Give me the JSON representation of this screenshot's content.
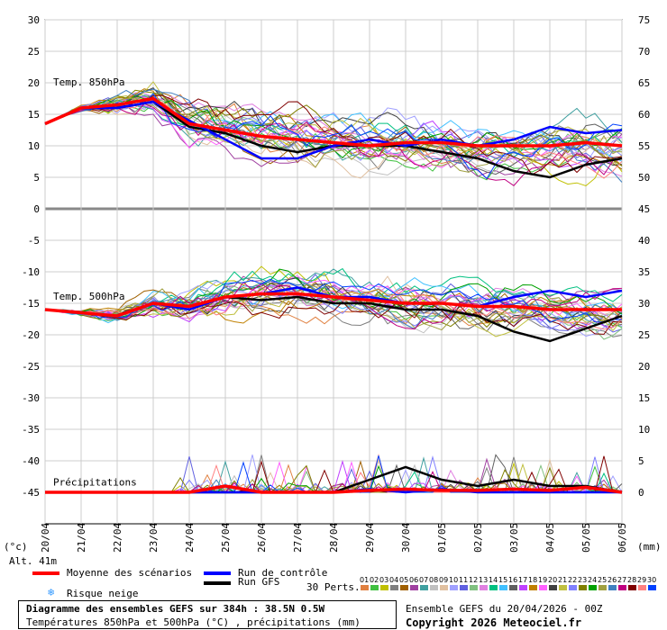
{
  "chart_data": {
    "type": "line",
    "left_axis_ticks": [
      "30",
      "25",
      "20",
      "15",
      "10",
      "5",
      "0",
      "-5",
      "-10",
      "-15",
      "-20",
      "-25",
      "-30",
      "-35",
      "-40",
      "-45"
    ],
    "right_axis_ticks": [
      "75",
      "70",
      "65",
      "60",
      "55",
      "50",
      "45",
      "40",
      "35",
      "30",
      "25",
      "20",
      "15",
      "10",
      "5",
      "0"
    ],
    "left_unit": "(°c)",
    "right_unit": "(mm)",
    "altitude": "Alt. 41m",
    "x_dates": [
      "20/04",
      "21/04",
      "22/04",
      "23/04",
      "24/04",
      "25/04",
      "26/04",
      "27/04",
      "28/04",
      "29/04",
      "30/04",
      "01/05",
      "02/05",
      "03/05",
      "04/05",
      "05/05",
      "06/05"
    ],
    "panel_labels": {
      "t850": "Temp. 850hPa",
      "t500": "Temp. 500hPa",
      "precip": "Précipitations"
    },
    "series": [
      {
        "name": "Moyenne des scénarios",
        "color": "#ff0000",
        "t850": [
          13.5,
          16,
          16.5,
          17.5,
          13.5,
          12.5,
          11.5,
          11,
          10.5,
          10,
          10.5,
          10.5,
          10,
          10,
          10,
          10.5,
          10
        ],
        "t500": [
          -16,
          -16.5,
          -17,
          -15,
          -15.5,
          -14,
          -13.5,
          -13.5,
          -14,
          -14.5,
          -15,
          -15,
          -15.5,
          -15.5,
          -16,
          -16,
          -16
        ],
        "precip": [
          0,
          0,
          0,
          0,
          0,
          1,
          0,
          0,
          0,
          0.3,
          0.5,
          0.3,
          0.3,
          0.5,
          0.3,
          0.8,
          0
        ]
      },
      {
        "name": "Run de contrôle",
        "color": "#0000ff",
        "t850": [
          13.5,
          16,
          16,
          17,
          14,
          11,
          8,
          8,
          10,
          11,
          10,
          11,
          10,
          11,
          13,
          12,
          12.5
        ],
        "t500": [
          -16,
          -16.5,
          -17,
          -15,
          -16,
          -14,
          -13.5,
          -12.5,
          -14,
          -14,
          -15,
          -15,
          -15.5,
          -14,
          -13,
          -14,
          -13
        ],
        "precip": [
          0,
          0,
          0,
          0,
          0,
          0,
          0,
          0,
          0,
          0.5,
          0,
          0.5,
          0,
          0,
          0,
          0,
          0
        ]
      },
      {
        "name": "Run GFS",
        "color": "#000000",
        "t850": [
          13.5,
          16,
          16,
          17,
          13,
          12,
          10,
          9,
          10,
          10,
          10,
          9,
          8,
          6,
          5,
          7,
          8
        ],
        "t500": [
          -16,
          -16.5,
          -17,
          -15,
          -15.5,
          -14,
          -14.5,
          -14,
          -15,
          -15,
          -16,
          -16,
          -17,
          -19.5,
          -21,
          -19,
          -17
        ],
        "precip": [
          0,
          0,
          0,
          0,
          0,
          0,
          0,
          0,
          0,
          2,
          4,
          2,
          1,
          2,
          1,
          1,
          0
        ]
      }
    ],
    "legend": {
      "mean": "Moyenne des scénarios",
      "control": "Run de contrôle",
      "gfs": "Run GFS",
      "snow": "Risque neige",
      "perts": "30 Perts."
    },
    "pert_labels": [
      "01",
      "02",
      "03",
      "04",
      "05",
      "06",
      "07",
      "08",
      "09",
      "10",
      "11",
      "12",
      "13",
      "14",
      "15",
      "16",
      "17",
      "18",
      "19",
      "20",
      "21",
      "22",
      "23",
      "24",
      "25",
      "26",
      "27",
      "28",
      "29",
      "30"
    ],
    "pert_colors": [
      "#e08040",
      "#40c040",
      "#c0c000",
      "#808080",
      "#a06000",
      "#a040a0",
      "#40a0a0",
      "#c0c0c0",
      "#e0c0a0",
      "#a0a0ff",
      "#6060e0",
      "#80c080",
      "#e080e0",
      "#00c080",
      "#40c0ff",
      "#606060",
      "#c040ff",
      "#c08000",
      "#ff60ff",
      "#404040",
      "#c0c040",
      "#8080ff",
      "#808000",
      "#00a000",
      "#a0a040",
      "#4080c0",
      "#c00080",
      "#800000",
      "#ff8080",
      "#0040ff"
    ]
  },
  "footer": {
    "title": "Diagramme des ensembles GEFS sur 384h : 38.5N 0.5W",
    "subtitle": "Températures 850hPa et 500hPa (°C) , précipitations (mm)",
    "run": "Ensemble GEFS du 20/04/2026 - 00Z",
    "copyright": "Copyright 2026 Meteociel.fr"
  }
}
